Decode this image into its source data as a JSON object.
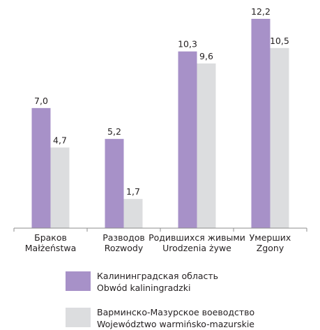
{
  "chart_data": {
    "type": "bar",
    "categories": [
      [
        "Браков",
        "Małżeństwa"
      ],
      [
        "Разводов",
        "Rozwody"
      ],
      [
        "Родившихся живыми",
        "Urodzenia żywe"
      ],
      [
        "Умерших",
        "Zgony"
      ]
    ],
    "series": [
      {
        "name": [
          "Калининградская область",
          "Obwód kaliningradzki"
        ],
        "values": [
          7.0,
          5.2,
          10.3,
          12.2
        ],
        "labels": [
          "7,0",
          "5,2",
          "10,3",
          "12,2"
        ],
        "color": "#a791c8"
      },
      {
        "name": [
          "Варминско-Мазурское воеводство",
          "Województwo warmińsko-mazurskie"
        ],
        "values": [
          4.7,
          1.7,
          9.6,
          10.5
        ],
        "labels": [
          "4,7",
          "1,7",
          "9,6",
          "10,5"
        ],
        "color": "#dcdddf"
      }
    ],
    "ylim": [
      0,
      12.2
    ],
    "grid": false,
    "legend_position": "bottom"
  },
  "colors": {
    "axis": "#8d8d8d",
    "text": "#231f20"
  }
}
